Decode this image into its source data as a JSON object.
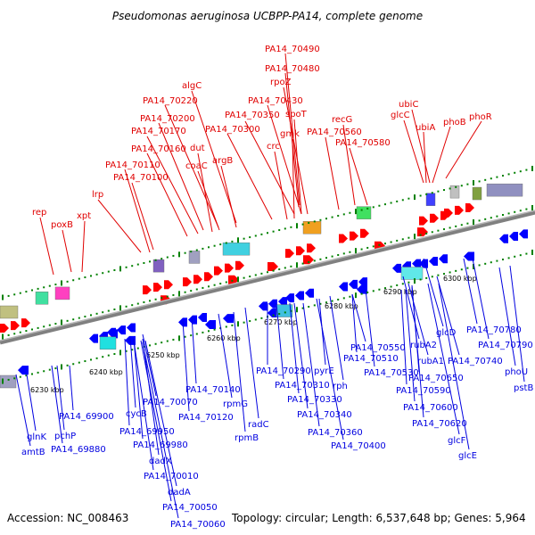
{
  "title": "Pseudomonas aeruginosa UCBPP-PA14, complete genome",
  "footer": {
    "accession": "Accession: NC_008463",
    "topology": "Topology: circular; Length: 6,537,648 bp; Genes: 5,964"
  },
  "colors": {
    "forward_label": "#e00000",
    "reverse_label": "#0000e0",
    "forward_gene": "#ff0000",
    "reverse_gene": "#0000ff",
    "axis": "#808080",
    "tick": "#008000"
  },
  "ticks": [
    {
      "label": "6230 kbp"
    },
    {
      "label": "6240 kbp"
    },
    {
      "label": "6250 kbp"
    },
    {
      "label": "6260 kbp"
    },
    {
      "label": "6270 kbp"
    },
    {
      "label": "6280 kbp"
    },
    {
      "label": "6290 kbp"
    },
    {
      "label": "6300 kbp"
    }
  ],
  "forward_labels": [
    {
      "text": "PA14_70490"
    },
    {
      "text": "PA14_70480"
    },
    {
      "text": "algC"
    },
    {
      "text": "rpoZ"
    },
    {
      "text": "PA14_70220"
    },
    {
      "text": "PA14_70430"
    },
    {
      "text": "ubiC"
    },
    {
      "text": "spoT"
    },
    {
      "text": "glcC"
    },
    {
      "text": "phoR"
    },
    {
      "text": "PA14_70200"
    },
    {
      "text": "PA14_70350"
    },
    {
      "text": "recG"
    },
    {
      "text": "phoB"
    },
    {
      "text": "ubiA"
    },
    {
      "text": "PA14_70170"
    },
    {
      "text": "PA14_70300"
    },
    {
      "text": "gmk"
    },
    {
      "text": "PA14_70560"
    },
    {
      "text": "PA14_70160"
    },
    {
      "text": "dut"
    },
    {
      "text": "crc"
    },
    {
      "text": "PA14_70580"
    },
    {
      "text": "argB"
    },
    {
      "text": "PA14_70110"
    },
    {
      "text": "coaC"
    },
    {
      "text": "PA14_70100"
    },
    {
      "text": "lrp"
    },
    {
      "text": "rep"
    },
    {
      "text": "poxB"
    },
    {
      "text": "xpt"
    }
  ],
  "reverse_labels": [
    {
      "text": "glcD"
    },
    {
      "text": "PA14_70780"
    },
    {
      "text": "PA14_70790"
    },
    {
      "text": "PA14_70550"
    },
    {
      "text": "rubA2"
    },
    {
      "text": "PA14_70510"
    },
    {
      "text": "rubA1"
    },
    {
      "text": "PA14_70740"
    },
    {
      "text": "PA14_70290"
    },
    {
      "text": "pyrE"
    },
    {
      "text": "PA14_70530"
    },
    {
      "text": "phoU"
    },
    {
      "text": "PA14_70650"
    },
    {
      "text": "PA14_70310"
    },
    {
      "text": "rph"
    },
    {
      "text": "pstB"
    },
    {
      "text": "PA14_70140"
    },
    {
      "text": "PA14_70590"
    },
    {
      "text": "PA14_70070"
    },
    {
      "text": "rpmG"
    },
    {
      "text": "PA14_70330"
    },
    {
      "text": "PA14_70600"
    },
    {
      "text": "PA14_70120"
    },
    {
      "text": "PA14_70340"
    },
    {
      "text": "radC"
    },
    {
      "text": "PA14_69900"
    },
    {
      "text": "cycB"
    },
    {
      "text": "PA14_70620"
    },
    {
      "text": "glnK"
    },
    {
      "text": "PA14_69950"
    },
    {
      "text": "pchP"
    },
    {
      "text": "rpmB"
    },
    {
      "text": "PA14_70360"
    },
    {
      "text": "glcF"
    },
    {
      "text": "PA14_69980"
    },
    {
      "text": "PA14_70400"
    },
    {
      "text": "amtB"
    },
    {
      "text": "PA14_69880"
    },
    {
      "text": "glcE"
    },
    {
      "text": "dadX"
    },
    {
      "text": "PA14_70010"
    },
    {
      "text": "dadA"
    },
    {
      "text": "PA14_70050"
    },
    {
      "text": "PA14_70060"
    }
  ]
}
